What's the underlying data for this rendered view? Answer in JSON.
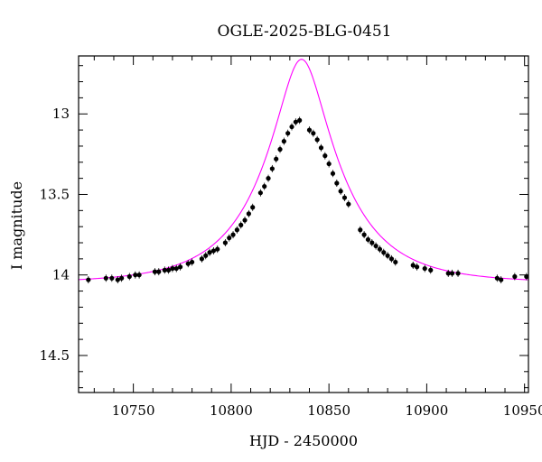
{
  "chart_data": {
    "type": "scatter",
    "title": "OGLE-2025-BLG-0451",
    "xlabel": "HJD - 2450000",
    "ylabel": "I magnitude",
    "xlim": [
      10722,
      10952
    ],
    "ylim": [
      14.73,
      12.64
    ],
    "y_inverted": true,
    "x_ticks": [
      "10750",
      "10800",
      "10850",
      "10900",
      "10950"
    ],
    "y_ticks": [
      "13",
      "13.5",
      "14",
      "14.5"
    ],
    "grid": false,
    "colors": {
      "points": "#000000",
      "model": "#ff00ff"
    },
    "model": {
      "t0": 10836,
      "u0": 0.2867,
      "tE": 40,
      "baseline": 14.05
    },
    "series": [
      {
        "x": [
          10727,
          10736,
          10739,
          10742,
          10744,
          10748,
          10751,
          10753,
          10761,
          10763,
          10766,
          10768,
          10770,
          10772,
          10774,
          10778,
          10780,
          10785,
          10787,
          10789,
          10791,
          10793,
          10797,
          10799,
          10801,
          10803,
          10805,
          10807,
          10809,
          10811,
          10815,
          10817,
          10819,
          10821,
          10823,
          10825,
          10827,
          10829,
          10831,
          10833,
          10835,
          10840,
          10842,
          10844,
          10846,
          10848,
          10850,
          10852,
          10854,
          10856,
          10858,
          10860,
          10866,
          10868,
          10870,
          10872,
          10874,
          10876,
          10878,
          10880,
          10882,
          10884,
          10893,
          10895,
          10899,
          10902,
          10911,
          10913,
          10916,
          10936,
          10938,
          10945,
          10951
        ],
        "y": [
          14.03,
          14.02,
          14.02,
          14.03,
          14.02,
          14.01,
          14.0,
          14.0,
          13.98,
          13.98,
          13.97,
          13.97,
          13.96,
          13.96,
          13.95,
          13.93,
          13.92,
          13.9,
          13.88,
          13.86,
          13.85,
          13.84,
          13.8,
          13.77,
          13.75,
          13.72,
          13.69,
          13.66,
          13.62,
          13.58,
          13.49,
          13.45,
          13.4,
          13.34,
          13.28,
          13.22,
          13.17,
          13.12,
          13.08,
          13.05,
          13.04,
          13.1,
          13.12,
          13.16,
          13.21,
          13.26,
          13.31,
          13.37,
          13.43,
          13.48,
          13.52,
          13.56,
          13.72,
          13.75,
          13.78,
          13.8,
          13.82,
          13.84,
          13.86,
          13.88,
          13.9,
          13.92,
          13.94,
          13.95,
          13.96,
          13.97,
          13.99,
          13.99,
          13.99,
          14.02,
          14.03,
          14.01,
          14.01
        ]
      }
    ]
  }
}
